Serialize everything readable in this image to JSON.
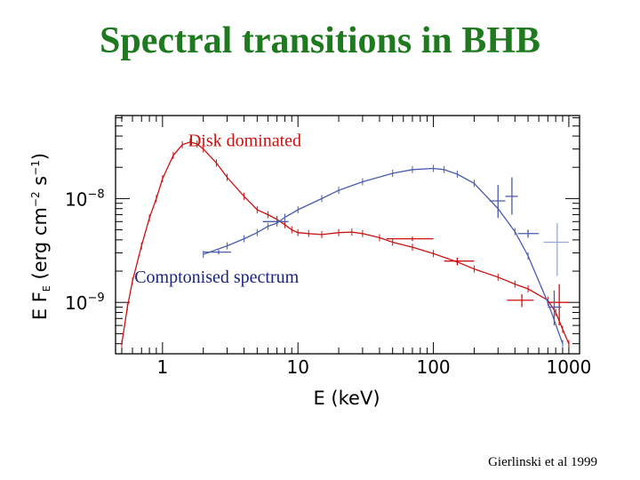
{
  "slide": {
    "title": "Spectral transitions in BHB",
    "citation": "Gierlinski et al 1999"
  },
  "colors": {
    "title": "#1f7a1f",
    "disk_series": "#cc1111",
    "compton_series": "#4a5ab0",
    "compton_errorbars": "#9aa8d8"
  },
  "chart_data": {
    "type": "line",
    "title": "",
    "xlabel": "E  (keV)",
    "ylabel_parts": [
      "E F",
      "E",
      "  (erg cm",
      "−2",
      " s",
      "−1",
      ")"
    ],
    "xscale": "log",
    "yscale": "log",
    "xlim": [
      0.45,
      1200
    ],
    "ylim": [
      3.2e-10,
      6.3e-08
    ],
    "xticks": [
      1,
      10,
      100,
      1000
    ],
    "xtick_labels": [
      "1",
      "10",
      "100",
      "1000"
    ],
    "yticks": [
      1e-09,
      1e-08
    ],
    "ytick_labels": [
      {
        "base": "10",
        "exp": "−9"
      },
      {
        "base": "10",
        "exp": "−8"
      }
    ],
    "grid": false,
    "annotations": [
      {
        "text": "Disk dominated",
        "color": "#cc1111",
        "x": 1.55,
        "y": 3.2e-08
      },
      {
        "text": "Comptonised spectrum",
        "color": "#1a237e",
        "x": 0.62,
        "y": 1.55e-09
      }
    ],
    "series": [
      {
        "id": "disk",
        "color": "#cc1111",
        "x": [
          0.5,
          0.55,
          0.6,
          0.7,
          0.8,
          0.9,
          1.0,
          1.2,
          1.4,
          1.6,
          1.8,
          2.0,
          2.5,
          3.0,
          4.0,
          5.0,
          6.0,
          7.0,
          8.0,
          9.0,
          10,
          12,
          15,
          20,
          25,
          30,
          40,
          50,
          70,
          100,
          150,
          200,
          300,
          400,
          500,
          700,
          800,
          900,
          1000
        ],
        "y": [
          4e-10,
          9e-10,
          1.6e-09,
          3.5e-09,
          6.5e-09,
          1e-08,
          1.55e-08,
          2.6e-08,
          3.3e-08,
          3.5e-08,
          3.35e-08,
          3e-08,
          2.2e-08,
          1.6e-08,
          1.05e-08,
          7.8e-09,
          7e-09,
          6.3e-09,
          5.6e-09,
          5e-09,
          4.7e-09,
          4.6e-09,
          4.5e-09,
          4.7e-09,
          4.75e-09,
          4.6e-09,
          4.2e-09,
          3.8e-09,
          3.4e-09,
          2.95e-09,
          2.45e-09,
          2.1e-09,
          1.75e-09,
          1.5e-09,
          1.35e-09,
          1.05e-09,
          8e-10,
          5.5e-10,
          4e-10
        ]
      },
      {
        "id": "compton",
        "color": "#4a5ab0",
        "x": [
          2.0,
          3.0,
          4.0,
          5.0,
          6.0,
          7.0,
          8.0,
          10,
          15,
          20,
          30,
          50,
          70,
          100,
          120,
          150,
          200,
          300,
          400,
          500,
          700,
          900
        ],
        "y": [
          2.9e-09,
          3.5e-09,
          4.1e-09,
          4.7e-09,
          5.4e-09,
          5.8e-09,
          6.6e-09,
          7.8e-09,
          1e-08,
          1.2e-08,
          1.45e-08,
          1.75e-08,
          1.9e-08,
          1.95e-08,
          1.9e-08,
          1.72e-08,
          1.4e-08,
          8e-09,
          4.8e-09,
          2.8e-09,
          1e-09,
          4e-10
        ]
      }
    ],
    "errorbars": [
      {
        "series": "disk",
        "x": 70,
        "y": 4.1e-09,
        "xerr": [
          45,
          100
        ],
        "yerr": [
          3.9e-09,
          4.3e-09
        ],
        "color": "#cc1111"
      },
      {
        "series": "disk",
        "x": 150,
        "y": 2.5e-09,
        "xerr": [
          120,
          200
        ],
        "yerr": [
          2.3e-09,
          2.7e-09
        ],
        "color": "#cc1111"
      },
      {
        "series": "disk",
        "x": 450,
        "y": 1.05e-09,
        "xerr": [
          350,
          550
        ],
        "yerr": [
          9e-10,
          1.2e-09
        ],
        "color": "#cc1111"
      },
      {
        "series": "disk",
        "x": 850,
        "y": 1e-09,
        "xerr": [
          700,
          1000
        ],
        "yerr": [
          6e-10,
          1.5e-09
        ],
        "color": "#cc1111"
      },
      {
        "series": "compton",
        "x": 2.6,
        "y": 3.05e-09,
        "xerr": [
          2.0,
          3.2
        ],
        "yerr": [
          2.9e-09,
          3.2e-09
        ],
        "color": "#4a5ab0"
      },
      {
        "series": "compton",
        "x": 7.0,
        "y": 6e-09,
        "xerr": [
          5.5,
          8.5
        ],
        "yerr": [
          5.6e-09,
          6.5e-09
        ],
        "color": "#4a5ab0"
      },
      {
        "series": "compton",
        "x": 300,
        "y": 9.5e-09,
        "xerr": [
          260,
          340
        ],
        "yerr": [
          6.5e-09,
          1.35e-08
        ],
        "color": "#4a5ab0"
      },
      {
        "series": "compton",
        "x": 380,
        "y": 1.05e-08,
        "xerr": [
          340,
          420
        ],
        "yerr": [
          7e-09,
          1.6e-08
        ],
        "color": "#4a5ab0"
      },
      {
        "series": "compton",
        "x": 500,
        "y": 4.6e-09,
        "xerr": [
          420,
          600
        ],
        "yerr": [
          4.2e-09,
          5e-09
        ],
        "color": "#4a5ab0"
      },
      {
        "series": "compton",
        "x": 820,
        "y": 3.8e-09,
        "xerr": [
          650,
          1000
        ],
        "yerr": [
          1.8e-09,
          5.8e-09
        ],
        "color": "#9aa8d8"
      },
      {
        "series": "compton",
        "x": 780,
        "y": 9e-10,
        "xerr": [
          700,
          880
        ],
        "yerr": [
          6e-10,
          1.3e-09
        ],
        "color": "#4a5ab0"
      }
    ]
  }
}
